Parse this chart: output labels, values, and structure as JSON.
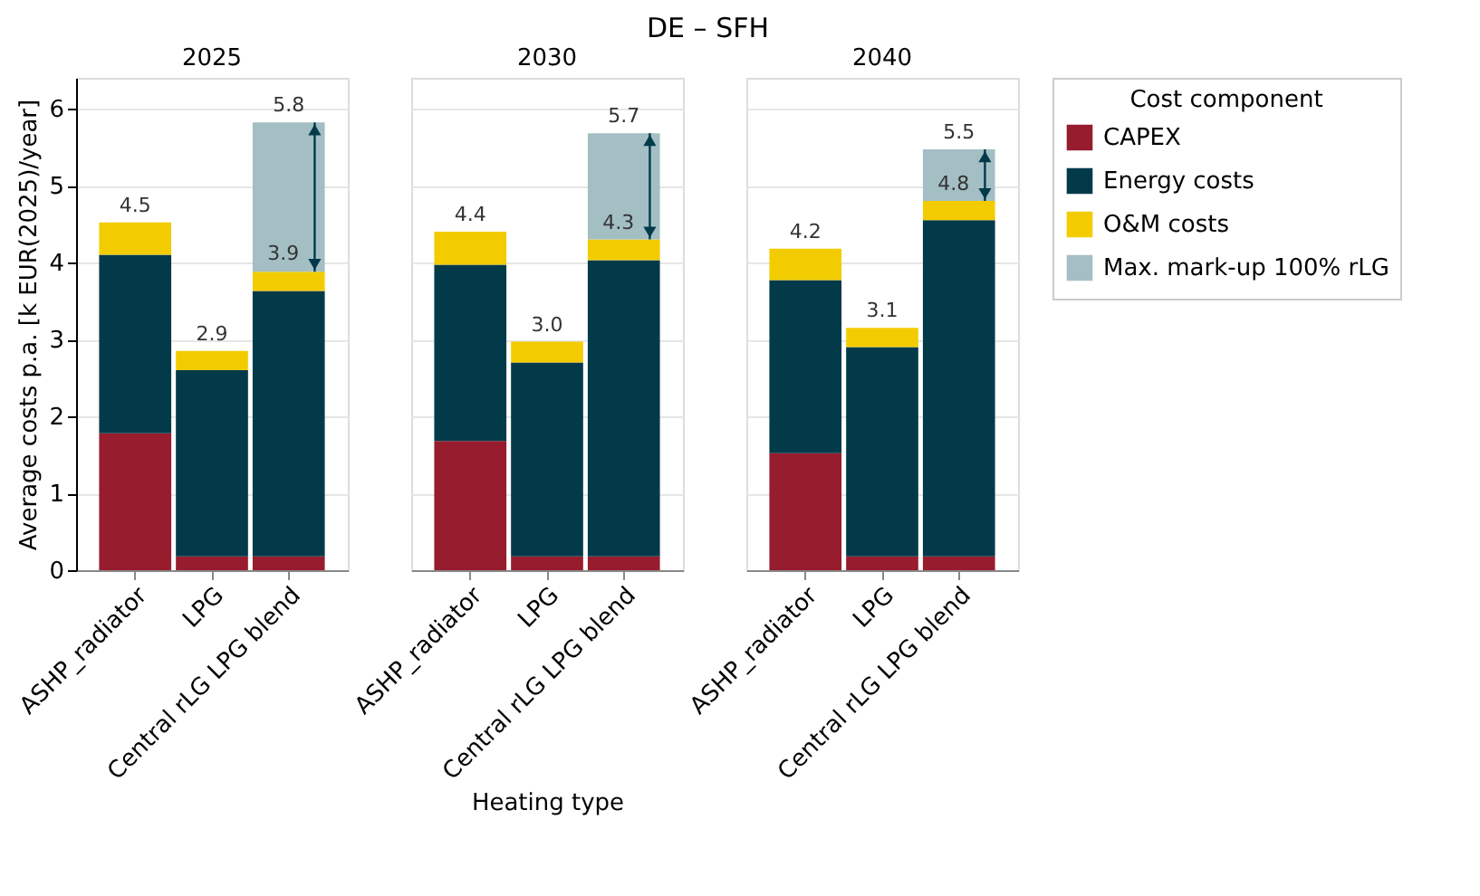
{
  "chart_data": [
    {
      "type": "bar",
      "subtitle": "2025",
      "ylabel": "Average costs p.a. [k EUR(2025)/year]",
      "categories": [
        "ASHP_radiator",
        "LPG",
        "Central rLG LPG blend"
      ],
      "stacked": true,
      "ylim": [
        0,
        6.4
      ],
      "yticks": [
        0,
        1,
        2,
        3,
        4,
        5,
        6
      ],
      "grid": "y",
      "legend": "right",
      "legend_title": "Cost component",
      "series": [
        {
          "name": "CAPEX",
          "color": "#961c2e",
          "values": [
            1.78,
            0.18,
            0.18
          ]
        },
        {
          "name": "Energy costs",
          "color": "#023a4a",
          "values": [
            2.32,
            2.42,
            3.45
          ]
        },
        {
          "name": "O&M costs",
          "color": "#f2cc00",
          "values": [
            0.42,
            0.25,
            0.25
          ]
        },
        {
          "name": "Max. mark-up 100% rLG",
          "color": "#a4bfc4",
          "values": [
            null,
            null,
            1.94
          ]
        }
      ],
      "totals": [
        "4.5",
        "2.9",
        "5.8"
      ],
      "annotations": [
        {
          "text": "3.9",
          "x": "Central rLG LPG blend",
          "y": 3.9
        }
      ]
    },
    {
      "type": "bar",
      "title": "DE – SFH",
      "subtitle": "2030",
      "xlabel": "Heating type",
      "categories": [
        "ASHP_radiator",
        "LPG",
        "Central rLG LPG blend"
      ],
      "stacked": true,
      "ylim": [
        0,
        6.4
      ],
      "yticks": [
        0,
        1,
        2,
        3,
        4,
        5,
        6
      ],
      "grid": "y",
      "tick_labels": "x",
      "legend": "right",
      "series": [
        {
          "name": "CAPEX",
          "color": "#961c2e",
          "values": [
            1.68,
            0.18,
            0.18
          ]
        },
        {
          "name": "Energy costs",
          "color": "#023a4a",
          "values": [
            2.29,
            2.52,
            3.85
          ]
        },
        {
          "name": "O&M costs",
          "color": "#f2cc00",
          "values": [
            0.43,
            0.27,
            0.27
          ]
        },
        {
          "name": "Max. mark-up 100% rLG",
          "color": "#a4bfc4",
          "values": [
            null,
            null,
            1.38
          ]
        }
      ],
      "totals": [
        "4.4",
        "3.0",
        "5.7"
      ],
      "annotations": [
        {
          "text": "4.3",
          "x": "Central rLG LPG blend",
          "y": 4.3
        }
      ]
    },
    {
      "type": "bar",
      "subtitle": "2040",
      "categories": [
        "ASHP_radiator",
        "LPG",
        "Central rLG LPG blend"
      ],
      "stacked": true,
      "ylim": [
        0,
        6.4
      ],
      "yticks": [
        0,
        1,
        2,
        3,
        4,
        5,
        6
      ],
      "grid": "y",
      "tick_labels": "x",
      "legend": "right",
      "series": [
        {
          "name": "CAPEX",
          "color": "#961c2e",
          "values": [
            1.52,
            0.18,
            0.18
          ]
        },
        {
          "name": "Energy costs",
          "color": "#023a4a",
          "values": [
            2.25,
            2.72,
            4.37
          ]
        },
        {
          "name": "O&M costs",
          "color": "#f2cc00",
          "values": [
            0.41,
            0.25,
            0.25
          ]
        },
        {
          "name": "Max. mark-up 100% rLG",
          "color": "#a4bfc4",
          "values": [
            null,
            null,
            0.67
          ]
        }
      ],
      "totals": [
        "4.2",
        "3.1",
        "5.5"
      ],
      "annotations": [
        {
          "text": "4.8",
          "x": "Central rLG LPG blend",
          "y": 4.8
        }
      ]
    }
  ]
}
